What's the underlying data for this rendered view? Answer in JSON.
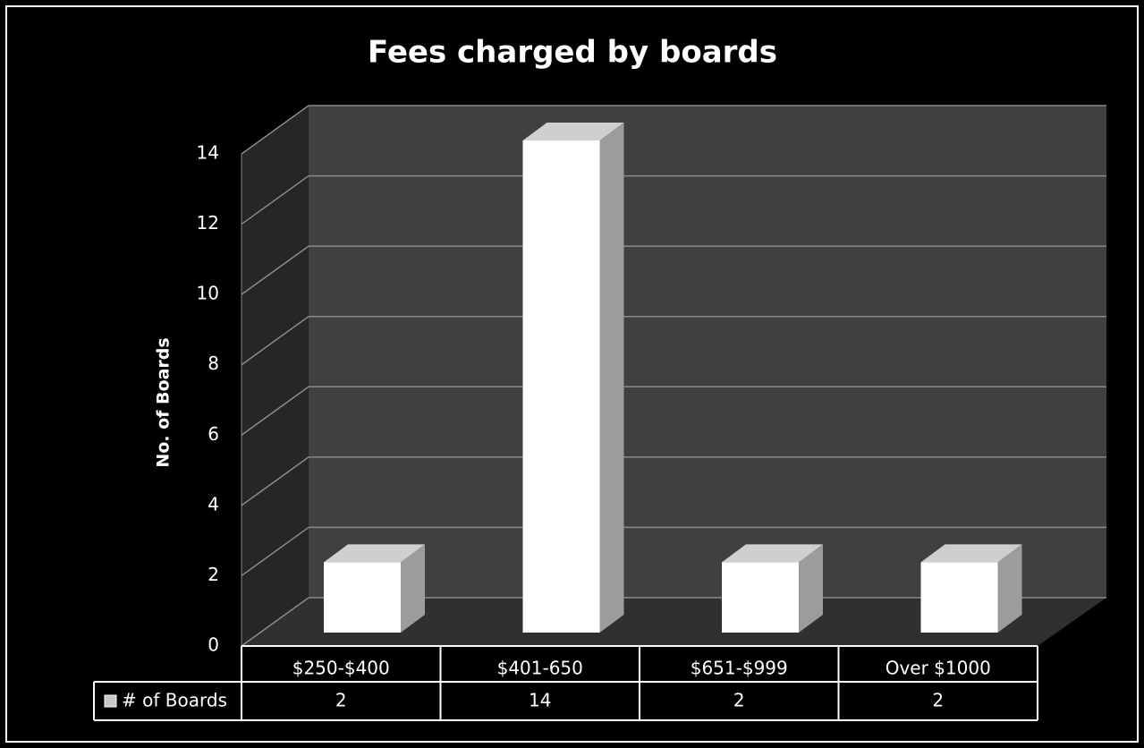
{
  "chart_data": {
    "type": "bar3d",
    "title": "Fees charged by boards",
    "y_label": "No. of Boards",
    "categories": [
      "$250-$400",
      "$401-650",
      "$651-$999",
      "Over $1000"
    ],
    "series": [
      {
        "name": "# of Boards",
        "color": "#ffffff",
        "values": [
          2,
          14,
          2,
          2
        ]
      }
    ],
    "ylim": [
      0,
      14
    ],
    "yticks": [
      0,
      2,
      4,
      6,
      8,
      10,
      12,
      14
    ],
    "grid": true
  }
}
